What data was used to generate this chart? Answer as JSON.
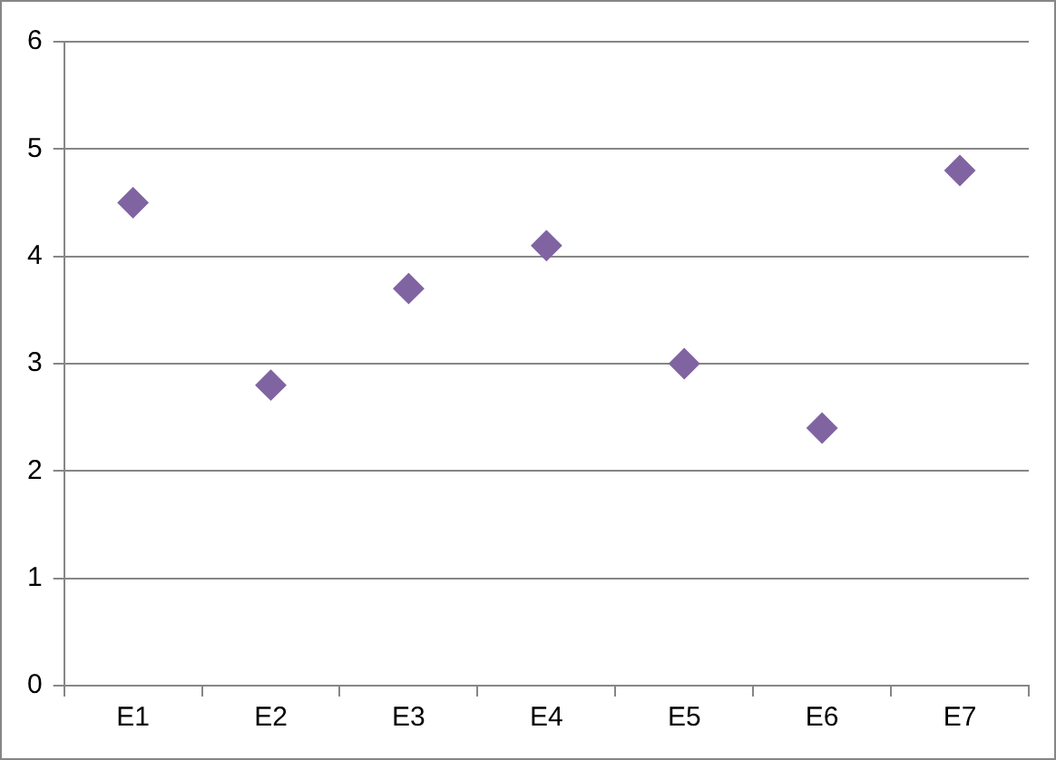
{
  "chart_data": {
    "type": "scatter",
    "categories": [
      "E1",
      "E2",
      "E3",
      "E4",
      "E5",
      "E6",
      "E7"
    ],
    "series": [
      {
        "color": "#8064a2",
        "values": [
          4.5,
          2.8,
          3.7,
          4.1,
          3.0,
          2.4,
          4.8
        ]
      }
    ],
    "ylim": [
      0,
      6
    ],
    "yticks": [
      0,
      1,
      2,
      3,
      4,
      5,
      6
    ],
    "grid": "y",
    "marker": "diamond",
    "legend": false
  }
}
